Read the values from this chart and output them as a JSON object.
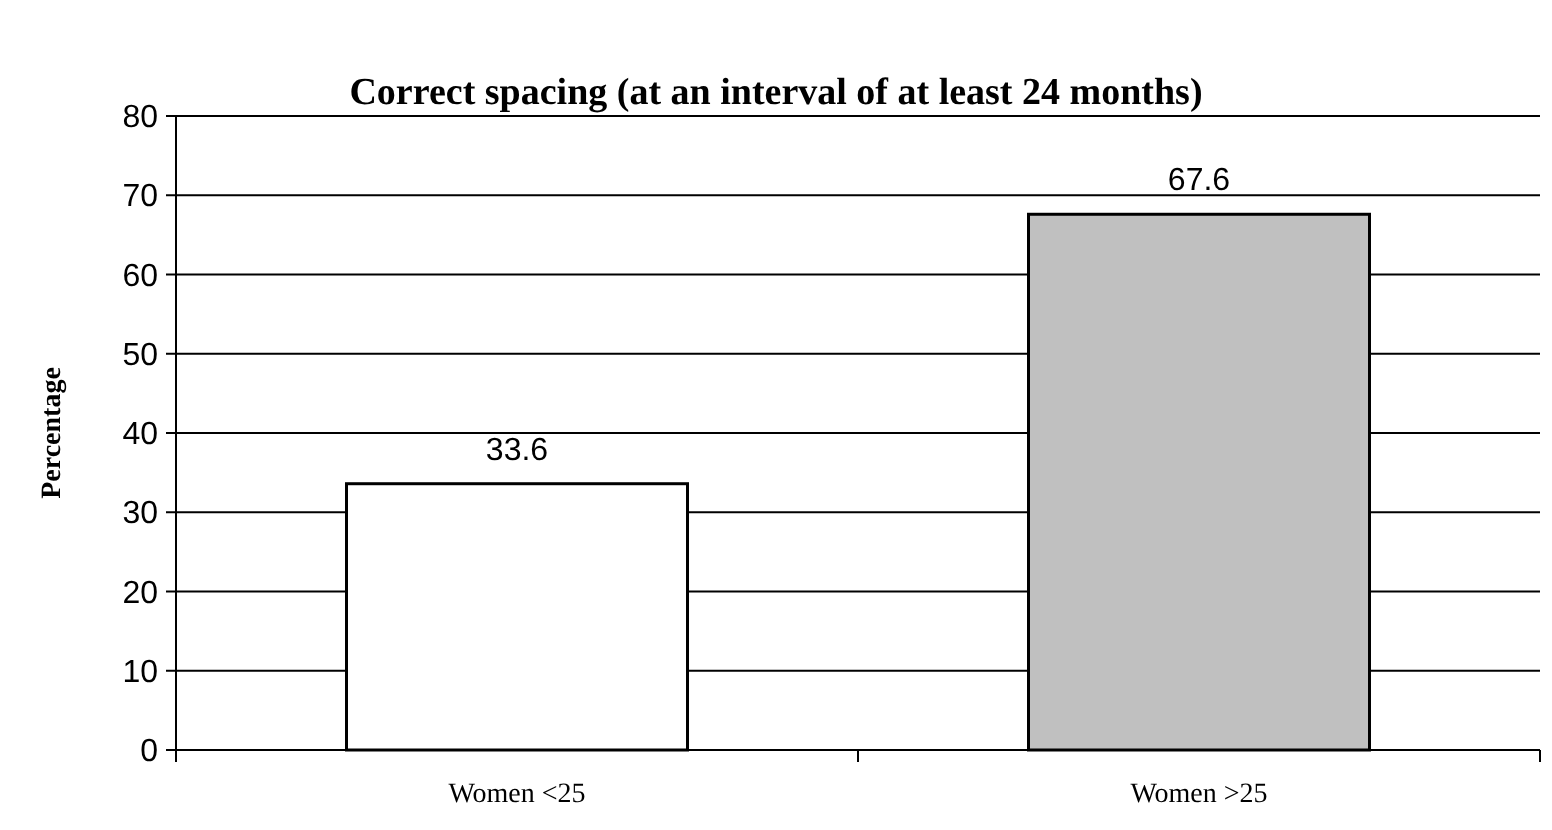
{
  "chart_data": {
    "type": "bar",
    "title": "Correct spacing (at an interval of at least 24 months)",
    "ylabel": "Percentage",
    "categories": [
      "Women <25",
      "Women >25"
    ],
    "values": [
      33.6,
      67.6
    ],
    "colors": [
      "#ffffff",
      "#c0c0c0"
    ],
    "ylim": [
      0,
      80
    ],
    "yticks": [
      0,
      10,
      20,
      30,
      40,
      50,
      60,
      70,
      80
    ],
    "grid": "y",
    "data_labels": true
  }
}
